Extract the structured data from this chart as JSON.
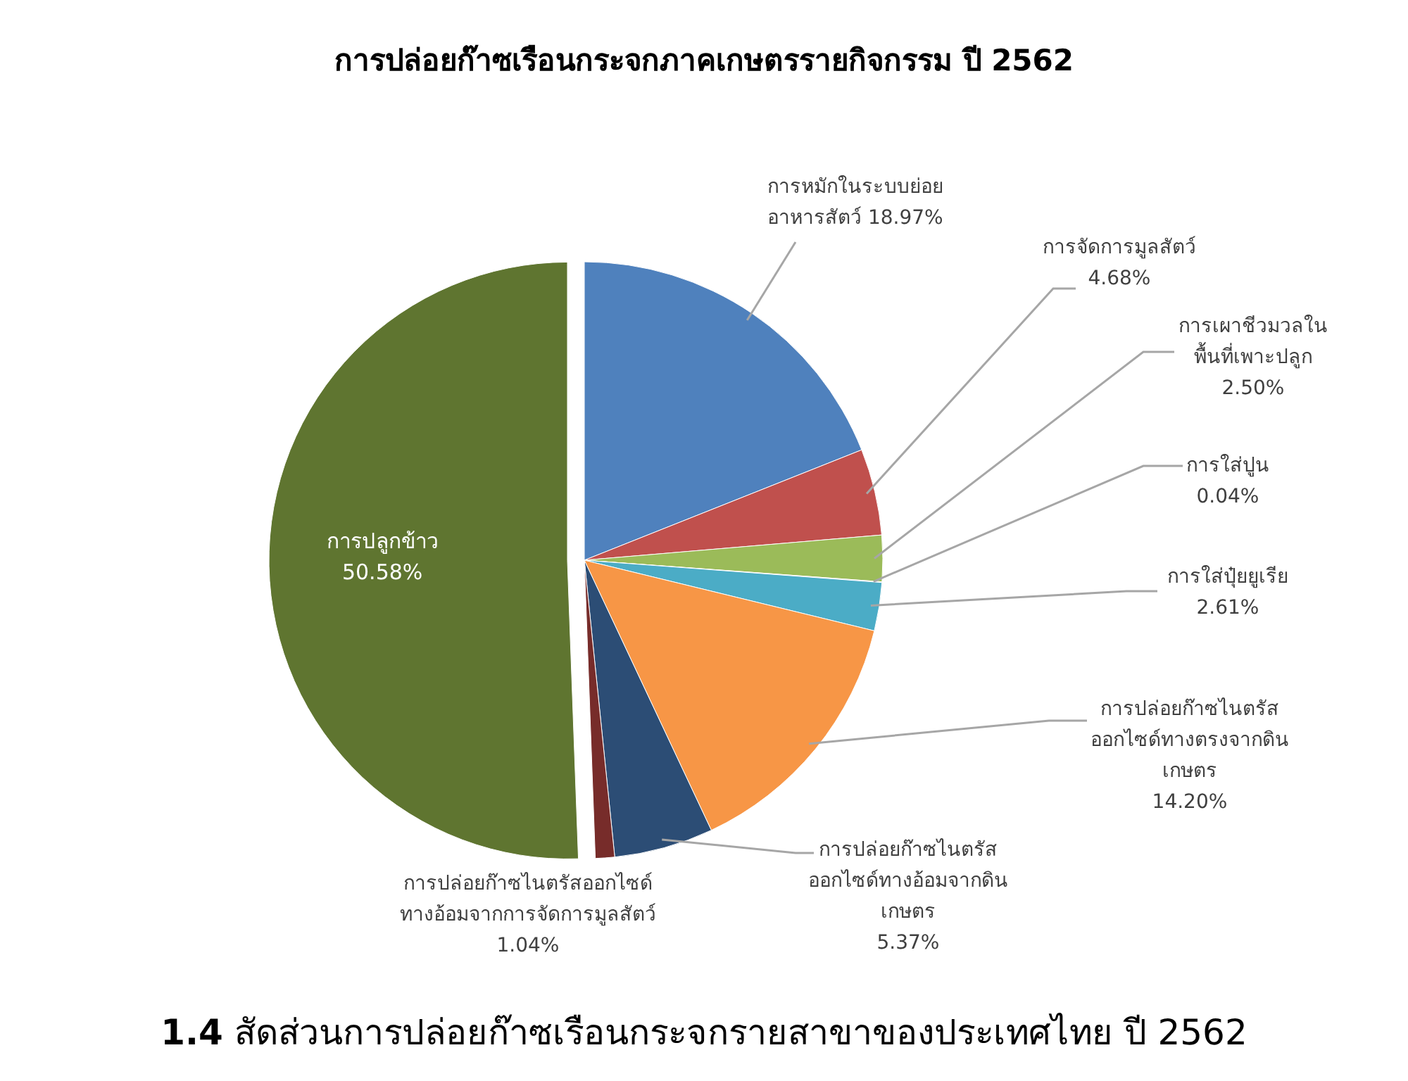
{
  "chart_data": {
    "type": "pie",
    "title": "การปล่อยก๊าซเรือนกระจกภาคเกษตรรายกิจกรรม ปี 2562",
    "categories": [
      "การหมักในระบบย่อย\nอาหารสัตว์",
      "การจัดการมูลสัตว์",
      "การเผาชีวมวลใน\nพื้นที่เพาะปลูก",
      "การใส่ปูน",
      "การใส่ปุ๋ยยูเรีย",
      "การปล่อยก๊าซไนตรัส\nออกไซด์ทางตรงจากดิน\nเกษตร",
      "การปล่อยก๊าซไนตรัส\nออกไซด์ทางอ้อมจากดิน\nเกษตร",
      "การปล่อยก๊าซไนตรัสออกไซด์\nทางอ้อมจากการจัดการมูลสัตว์",
      "การปลูกข้าว"
    ],
    "values": [
      18.97,
      4.68,
      2.5,
      0.04,
      2.61,
      14.2,
      5.37,
      1.04,
      50.58
    ],
    "value_labels": [
      "18.97%",
      "4.68%",
      "2.50%",
      "0.04%",
      "2.61%",
      "14.20%",
      "5.37%",
      "1.04%",
      "50.58%"
    ],
    "colors": [
      "#4f81bd",
      "#c0504d",
      "#9bbb59",
      "#8064a2",
      "#4bacc6",
      "#f79646",
      "#2c4d75",
      "#772c2a",
      "#5f7530"
    ],
    "annotations": [
      "1.4 สัดส่วนการปล่อยก๊าซเรือนกระจกรายสาขาของประเทศไทย ปี 2562"
    ]
  }
}
